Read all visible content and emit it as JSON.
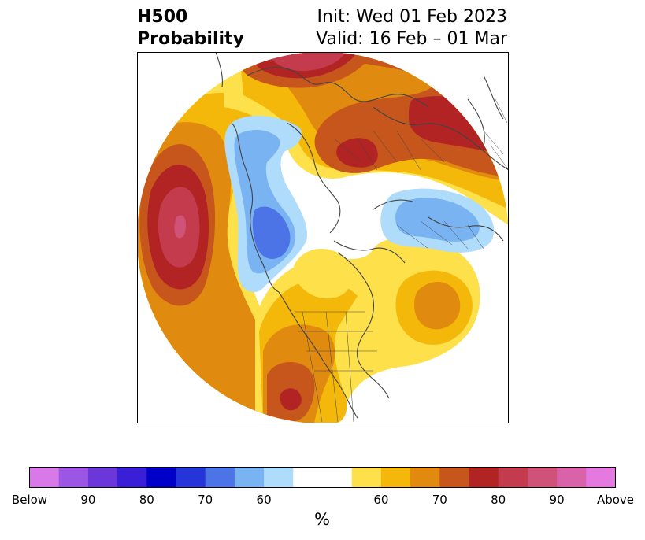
{
  "title": {
    "left_line1": "H500",
    "left_line2": "Probability",
    "right_line1": "Init: Wed 01 Feb 2023",
    "right_line2": "Valid: 16 Feb – 01 Mar"
  },
  "colorbar": {
    "unit_label": "%",
    "colors": [
      "#d77ae8",
      "#9b57e3",
      "#6b37db",
      "#3a1fd8",
      "#0000c8",
      "#2635d9",
      "#4d74e6",
      "#7ab3f2",
      "#afdcfb",
      "#ffffff",
      "#ffffff",
      "#fde04a",
      "#f4b80a",
      "#e08a10",
      "#c7561c",
      "#b22424",
      "#c53b4e",
      "#cf5378",
      "#d963a8",
      "#e47adf"
    ],
    "ticks": [
      "Below",
      "90",
      "80",
      "70",
      "60",
      "60",
      "70",
      "80",
      "90",
      "Above"
    ]
  },
  "map": {
    "features": [
      "probability-shading",
      "coastlines",
      "political-boundaries"
    ],
    "colors": {
      "above_60": "#fde04a",
      "above_65": "#f4b80a",
      "above_70": "#e08a10",
      "above_75": "#c7561c",
      "above_80": "#b22424",
      "above_85": "#c53b4e",
      "above_90": "#cf5378",
      "below_60": "#afdcfb",
      "below_65": "#7ab3f2",
      "below_70": "#4d74e6",
      "coast": "#444444"
    }
  }
}
